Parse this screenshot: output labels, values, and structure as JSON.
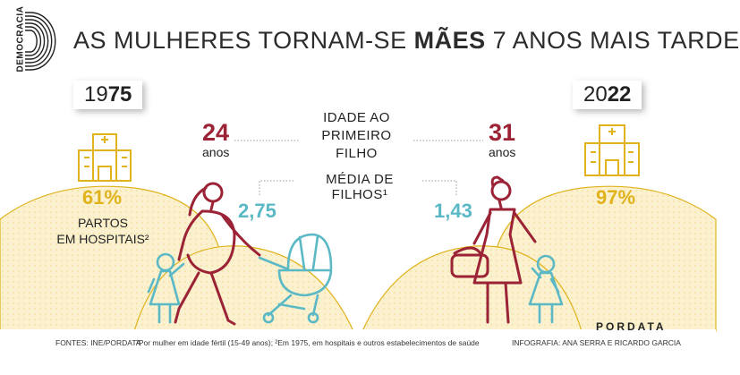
{
  "brand": {
    "vertical_text": "DEMOCRACIA"
  },
  "title": {
    "pre": "AS MULHERES TORNAM-SE ",
    "highlight": "MÃES",
    "post": " 7 ANOS MAIS TARDE"
  },
  "years": {
    "left": {
      "prefix": "19",
      "suffix": "75"
    },
    "right": {
      "prefix": "20",
      "suffix": "22"
    }
  },
  "age_first_child": {
    "label_line1": "IDADE AO",
    "label_line2": "PRIMEIRO FILHO",
    "left_value": "24",
    "right_value": "31",
    "unit": "anos"
  },
  "children": {
    "label": "MÉDIA DE FILHOS¹",
    "left_value": "2,75",
    "right_value": "1,43"
  },
  "hospital_births": {
    "left_value": "61%",
    "right_value": "97%",
    "label_line1": "PARTOS",
    "label_line2": "EM HOSPITAIS²"
  },
  "footer": {
    "sources": "FONTES: INE/PORDATA",
    "notes": "¹Por mulher em idade fértil (15-49 anos); ²Em 1975, em hospitais e outros estabelecimentos de saúde",
    "credits": "INFOGRAFIA: ANA SERRA E RICARDO GARCIA",
    "logo": "PORDATA"
  },
  "colors": {
    "red": "#9b2335",
    "teal": "#5bb8c5",
    "yellow": "#e0b21c",
    "hill": "#fbf0cc"
  }
}
